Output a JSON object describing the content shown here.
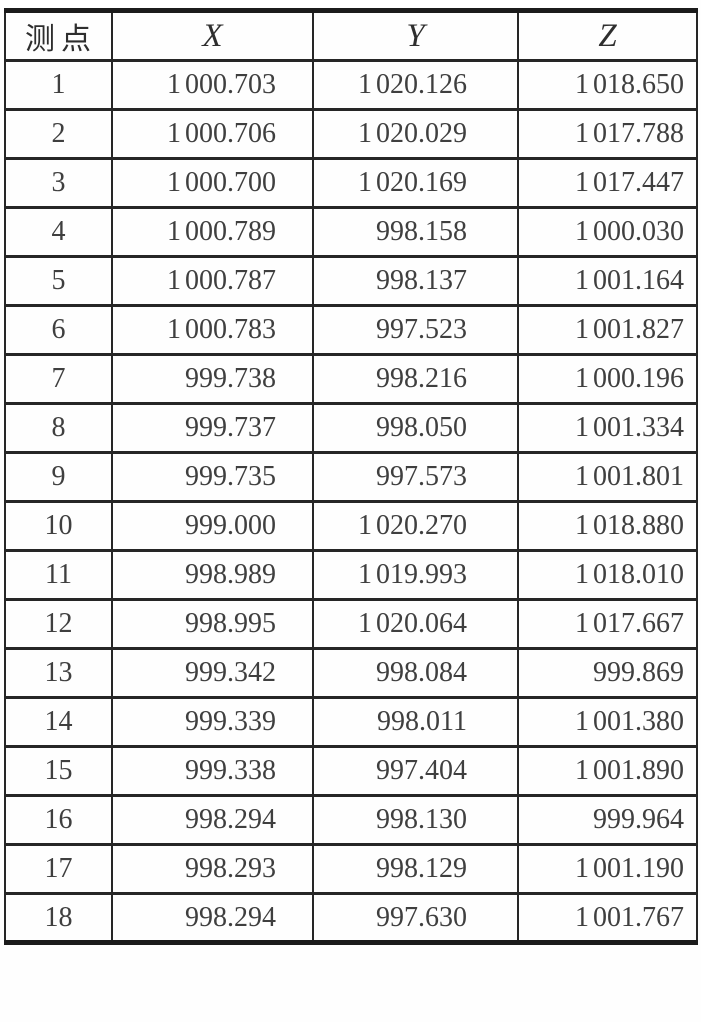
{
  "table": {
    "header": {
      "point": "测点",
      "x": "X",
      "y": "Y",
      "z": "Z"
    },
    "rows": [
      {
        "point": "1",
        "x": "1 000.703",
        "y": "1 020.126",
        "z": "1 018.650"
      },
      {
        "point": "2",
        "x": "1 000.706",
        "y": "1 020.029",
        "z": "1 017.788"
      },
      {
        "point": "3",
        "x": "1 000.700",
        "y": "1 020.169",
        "z": "1 017.447"
      },
      {
        "point": "4",
        "x": "1 000.789",
        "y": "998.158",
        "z": "1 000.030"
      },
      {
        "point": "5",
        "x": "1 000.787",
        "y": "998.137",
        "z": "1 001.164"
      },
      {
        "point": "6",
        "x": "1 000.783",
        "y": "997.523",
        "z": "1 001.827"
      },
      {
        "point": "7",
        "x": "999.738",
        "y": "998.216",
        "z": "1 000.196"
      },
      {
        "point": "8",
        "x": "999.737",
        "y": "998.050",
        "z": "1 001.334"
      },
      {
        "point": "9",
        "x": "999.735",
        "y": "997.573",
        "z": "1 001.801"
      },
      {
        "point": "10",
        "x": "999.000",
        "y": "1 020.270",
        "z": "1 018.880"
      },
      {
        "point": "11",
        "x": "998.989",
        "y": "1 019.993",
        "z": "1 018.010"
      },
      {
        "point": "12",
        "x": "998.995",
        "y": "1 020.064",
        "z": "1 017.667"
      },
      {
        "point": "13",
        "x": "999.342",
        "y": "998.084",
        "z": "999.869"
      },
      {
        "point": "14",
        "x": "999.339",
        "y": "998.011",
        "z": "1 001.380"
      },
      {
        "point": "15",
        "x": "999.338",
        "y": "997.404",
        "z": "1 001.890"
      },
      {
        "point": "16",
        "x": "998.294",
        "y": "998.130",
        "z": "999.964"
      },
      {
        "point": "17",
        "x": "998.293",
        "y": "998.129",
        "z": "1 001.190"
      },
      {
        "point": "18",
        "x": "998.294",
        "y": "997.630",
        "z": "1 001.767"
      }
    ]
  }
}
